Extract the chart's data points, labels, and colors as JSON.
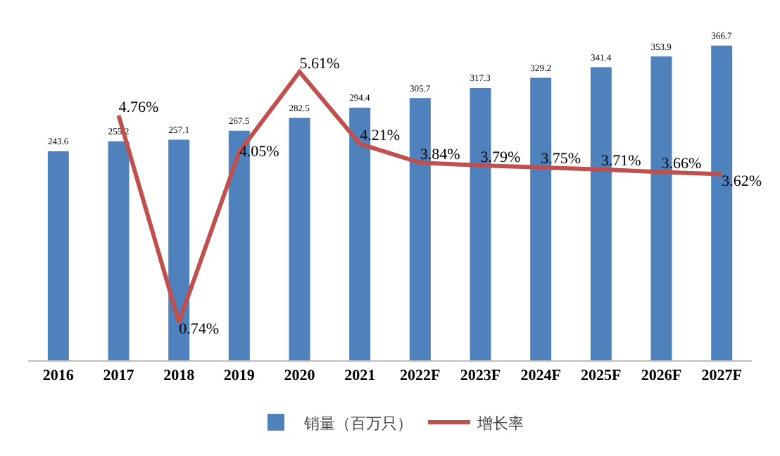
{
  "chart_data": {
    "type": "bar",
    "categories": [
      "2016",
      "2017",
      "2018",
      "2019",
      "2020",
      "2021",
      "2022F",
      "2023F",
      "2024F",
      "2025F",
      "2026F",
      "2027F"
    ],
    "series": [
      {
        "name": "销量（百万只）",
        "color": "#4f81bd",
        "values": [
          243.6,
          255.2,
          257.1,
          267.5,
          282.5,
          294.4,
          305.7,
          317.3,
          329.2,
          341.4,
          353.9,
          366.7
        ]
      },
      {
        "name": "增长率",
        "type": "line",
        "axis": "y2",
        "color": "#c0504d",
        "values": [
          null,
          4.76,
          0.74,
          4.05,
          5.61,
          4.21,
          3.84,
          3.79,
          3.75,
          3.71,
          3.66,
          3.62
        ],
        "value_labels": [
          null,
          "4.76%",
          "0.74%",
          "4.05%",
          "5.61%",
          "4.21%",
          "3.84%",
          "3.79%",
          "3.75%",
          "3.71%",
          "3.66%",
          "3.62%"
        ]
      }
    ],
    "data_labels": true,
    "legend": "bottom",
    "grid": false,
    "marker": "none",
    "line_style": "solid",
    "tick_labels": "x"
  }
}
